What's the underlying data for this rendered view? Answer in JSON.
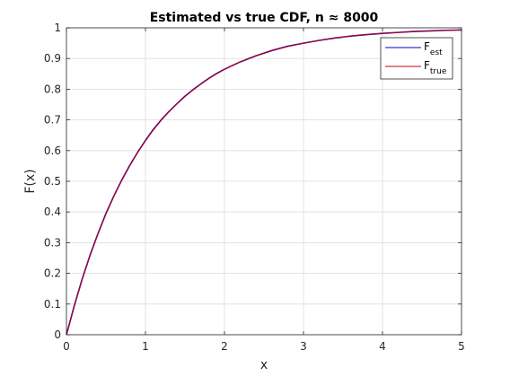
{
  "chart_data": {
    "type": "line",
    "title": "Estimated vs true CDF, n ≈ 8000",
    "xlabel": "x",
    "ylabel": "F(x)",
    "xlim": [
      0,
      5
    ],
    "ylim": [
      0,
      1
    ],
    "xticks": [
      0,
      1,
      2,
      3,
      4,
      5
    ],
    "xtick_labels": [
      "0",
      "1",
      "2",
      "3",
      "4",
      "5"
    ],
    "yticks": [
      0,
      0.1,
      0.2,
      0.3,
      0.4,
      0.5,
      0.6,
      0.7,
      0.8,
      0.9,
      1
    ],
    "ytick_labels": [
      "0",
      "0.1",
      "0.2",
      "0.3",
      "0.4",
      "0.5",
      "0.6",
      "0.7",
      "0.8",
      "0.9",
      "1"
    ],
    "grid": true,
    "legend_position": "top-right",
    "series": [
      {
        "name": "F",
        "subscript": "est",
        "color": "#0000cc",
        "x": [
          0,
          0.1,
          0.2,
          0.3,
          0.4,
          0.5,
          0.6,
          0.7,
          0.8,
          0.9,
          1.0,
          1.1,
          1.2,
          1.3,
          1.4,
          1.5,
          1.6,
          1.7,
          1.8,
          1.9,
          2.0,
          2.2,
          2.4,
          2.6,
          2.8,
          3.0,
          3.2,
          3.4,
          3.6,
          3.8,
          4.0,
          4.2,
          4.4,
          4.6,
          4.8,
          5.0
        ],
        "y": [
          0,
          0.095,
          0.182,
          0.26,
          0.33,
          0.395,
          0.452,
          0.504,
          0.551,
          0.594,
          0.633,
          0.669,
          0.7,
          0.728,
          0.753,
          0.777,
          0.798,
          0.817,
          0.835,
          0.851,
          0.865,
          0.889,
          0.909,
          0.926,
          0.94,
          0.95,
          0.959,
          0.967,
          0.973,
          0.978,
          0.982,
          0.985,
          0.988,
          0.99,
          0.992,
          0.993
        ]
      },
      {
        "name": "F",
        "subscript": "true",
        "color": "#cc0000",
        "x": [
          0,
          0.1,
          0.2,
          0.3,
          0.4,
          0.5,
          0.6,
          0.7,
          0.8,
          0.9,
          1.0,
          1.1,
          1.2,
          1.3,
          1.4,
          1.5,
          1.6,
          1.7,
          1.8,
          1.9,
          2.0,
          2.2,
          2.4,
          2.6,
          2.8,
          3.0,
          3.2,
          3.4,
          3.6,
          3.8,
          4.0,
          4.2,
          4.4,
          4.6,
          4.8,
          5.0
        ],
        "y": [
          0,
          0.095,
          0.181,
          0.259,
          0.33,
          0.393,
          0.451,
          0.503,
          0.551,
          0.593,
          0.632,
          0.667,
          0.699,
          0.727,
          0.753,
          0.777,
          0.798,
          0.817,
          0.835,
          0.85,
          0.865,
          0.889,
          0.909,
          0.926,
          0.939,
          0.95,
          0.959,
          0.967,
          0.973,
          0.978,
          0.982,
          0.985,
          0.988,
          0.99,
          0.992,
          0.993
        ]
      }
    ]
  }
}
